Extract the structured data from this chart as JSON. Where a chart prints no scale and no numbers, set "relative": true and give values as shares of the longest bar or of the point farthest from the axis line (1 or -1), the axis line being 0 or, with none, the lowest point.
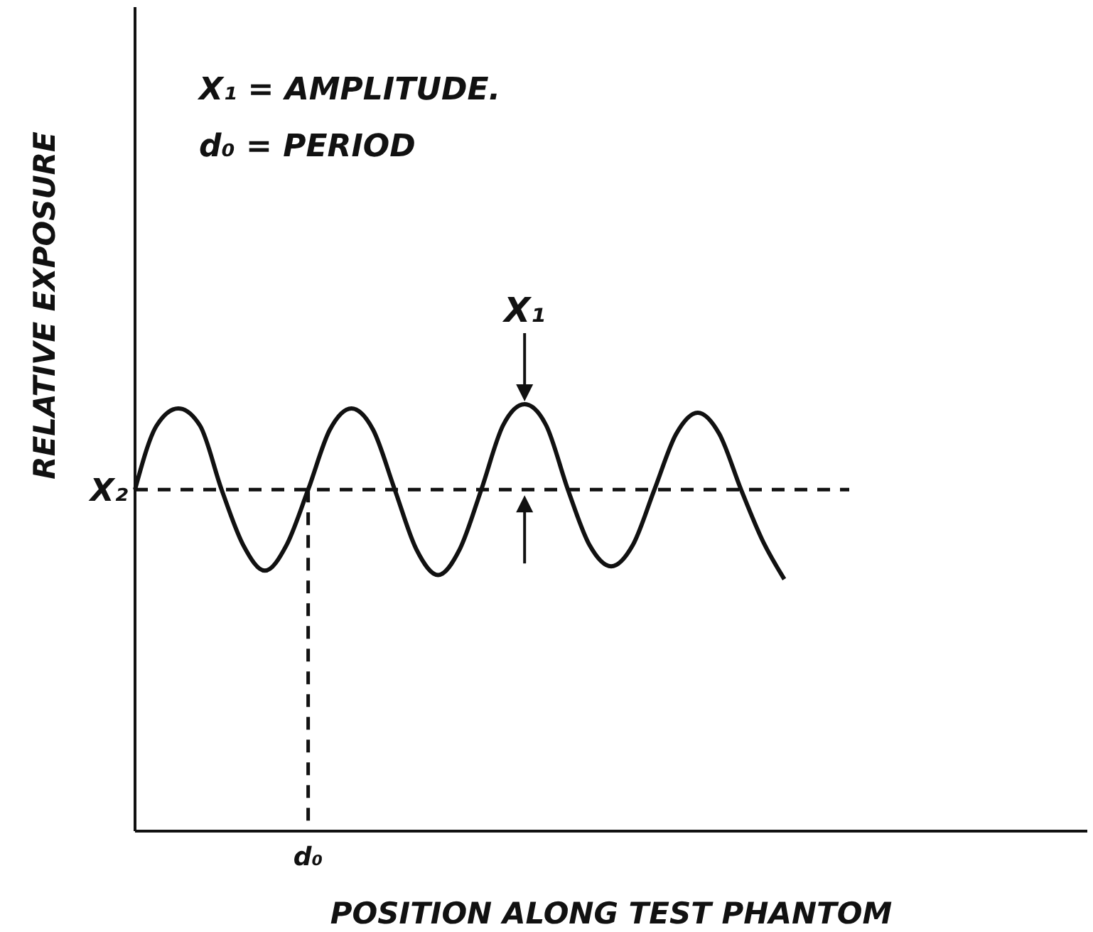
{
  "chart_data": {
    "type": "line",
    "relative": true,
    "xlabel": "POSITION ALONG TEST PHANTOM",
    "ylabel": "RELATIVE EXPOSURE",
    "categories": [
      null,
      null,
      null,
      null,
      null,
      null,
      null,
      null,
      null,
      null,
      null,
      null,
      null,
      null,
      null,
      null,
      null,
      null,
      null,
      null,
      null,
      null,
      null,
      null,
      null,
      null,
      null,
      null,
      null,
      null,
      null,
      null,
      null,
      null,
      null,
      null,
      null,
      null,
      null,
      null,
      null,
      null,
      null,
      null,
      null
    ],
    "series": [
      {
        "color": "#111111",
        "values": [
          0.8,
          0.95,
          0.99,
          0.95,
          0.8,
          0.67,
          0.61,
          0.67,
          0.8,
          0.94,
          0.99,
          0.94,
          0.8,
          0.66,
          0.6,
          0.66,
          0.8,
          0.95,
          1.0,
          0.95,
          0.8,
          0.67,
          0.62,
          0.67,
          0.8,
          0.93,
          0.98,
          0.93,
          0.8,
          0.68,
          0.59,
          null,
          null,
          null,
          null,
          null,
          null,
          null,
          null,
          null,
          null,
          null,
          null,
          null,
          null
        ]
      }
    ],
    "ref_lines": [
      {
        "axis": "y",
        "value": 0.8,
        "label": "X₂",
        "line_style": "dashed",
        "color": "#111111"
      }
    ],
    "annotations": [
      "X₁ = AMPLITUDE.",
      "d₀ = PERIOD",
      "X₁",
      "d₀"
    ],
    "marker": "none",
    "line_style": "solid",
    "legend": false,
    "grid": false
  }
}
